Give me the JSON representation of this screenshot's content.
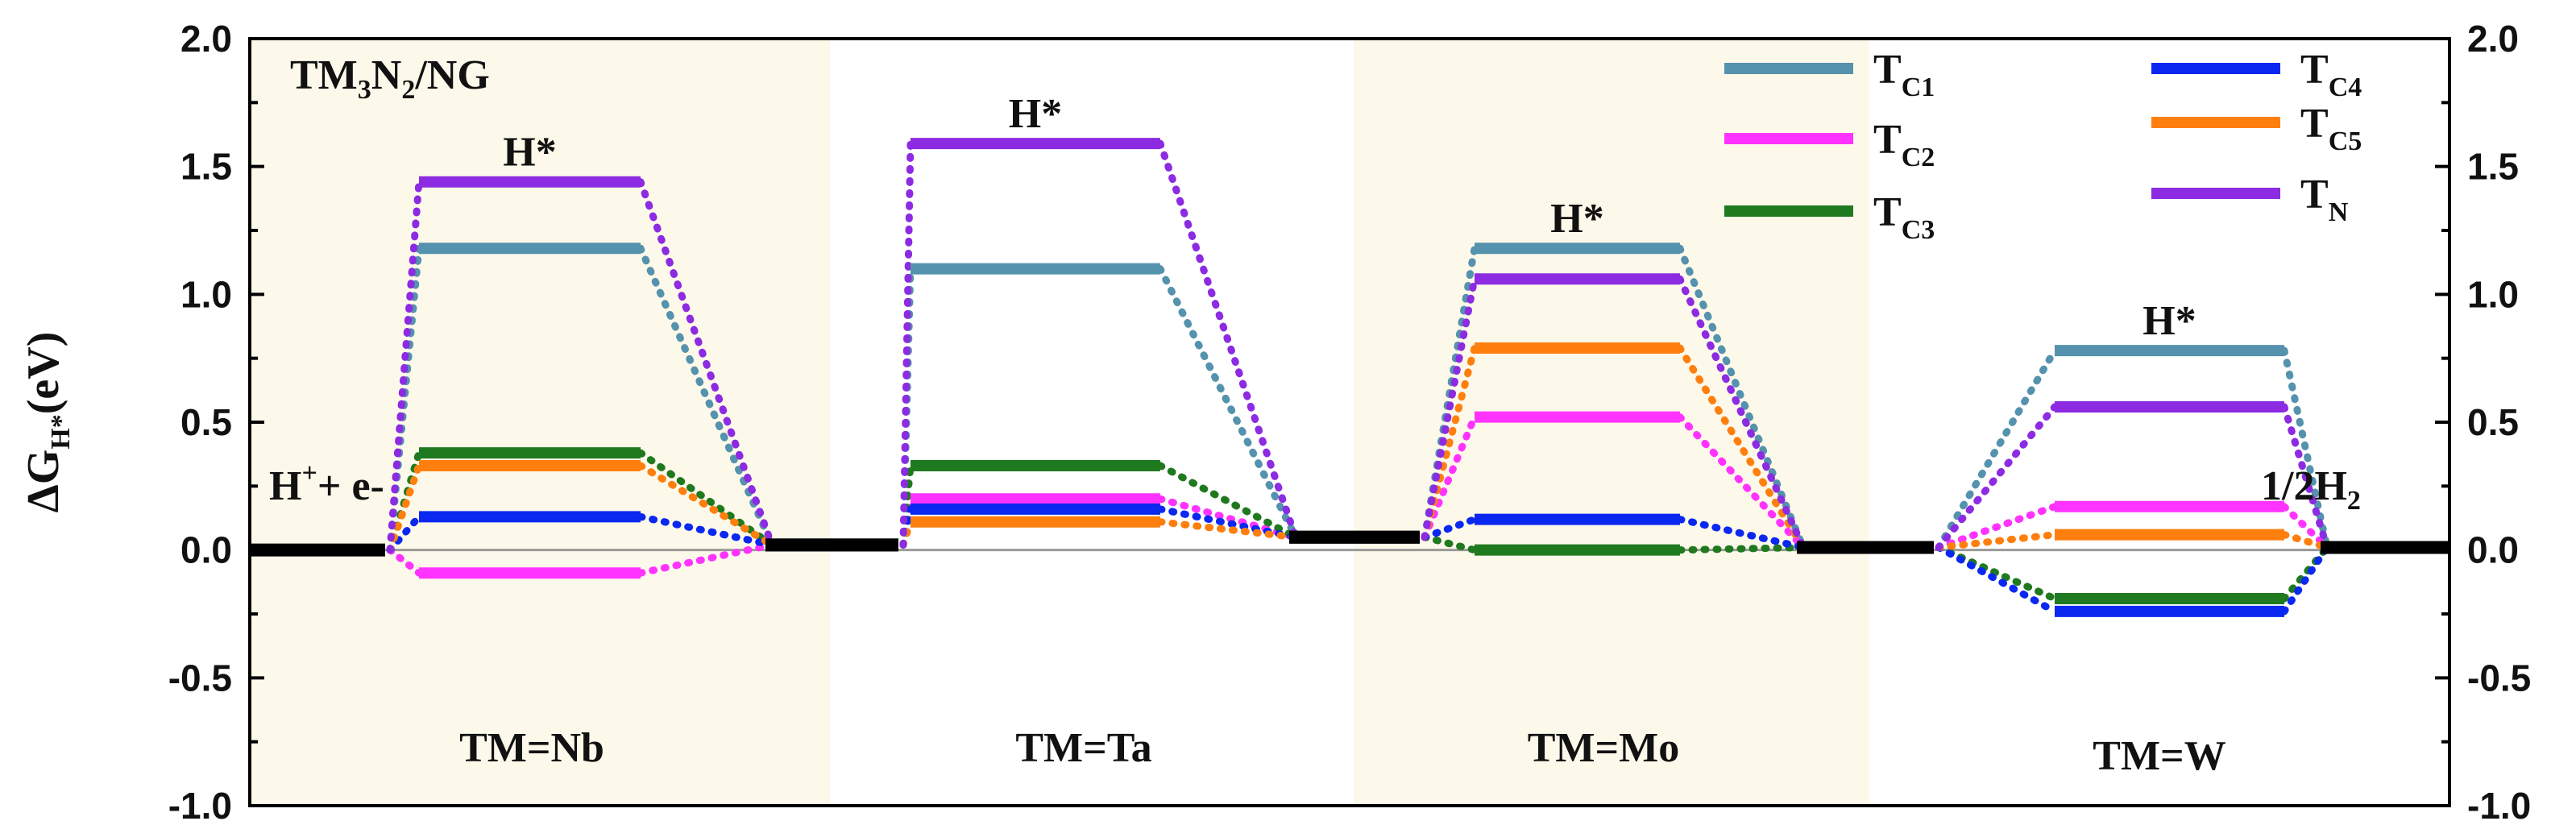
{
  "chart_data": {
    "type": "free-energy-diagram",
    "ylabel": {
      "main": "ΔG",
      "sub": "H*",
      "unit": "(eV)"
    },
    "ylim": [
      -1.0,
      2.0
    ],
    "yticks": [
      "2.0",
      "1.5",
      "1.0",
      "0.5",
      "0.0",
      "-0.5",
      "-1.0"
    ],
    "panel_title": {
      "a": "TM",
      "s1": "3",
      "b": "N",
      "s2": "2",
      "c": "/NG"
    },
    "initial_label": {
      "a": "H",
      "sup": "+",
      "b": "+ e-"
    },
    "final_label": {
      "a": "1/2H",
      "sub": "2"
    },
    "intermediate_label": "H*",
    "legend": [
      {
        "key": "TC1",
        "main": "T",
        "sub": "C1",
        "color": "#5592ad"
      },
      {
        "key": "TC2",
        "main": "T",
        "sub": "C2",
        "color": "#ff33ff"
      },
      {
        "key": "TC3",
        "main": "T",
        "sub": "C3",
        "color": "#1f7a1f"
      },
      {
        "key": "TC4",
        "main": "T",
        "sub": "C4",
        "color": "#0a28f0"
      },
      {
        "key": "TC5",
        "main": "T",
        "sub": "C5",
        "color": "#ff7f0e"
      },
      {
        "key": "TN",
        "main": "T",
        "sub": "N",
        "color": "#8c2be2"
      }
    ],
    "baseline_color": "#000000",
    "panels": [
      {
        "label": "TM=Nb",
        "shaded": true,
        "initial": 0.0,
        "final": 0.02,
        "values": {
          "TC1": 1.18,
          "TC2": -0.09,
          "TC3": 0.38,
          "TC4": 0.13,
          "TC5": 0.33,
          "TN": 1.44
        }
      },
      {
        "label": "TM=Ta",
        "shaded": false,
        "initial": 0.02,
        "final": 0.05,
        "values": {
          "TC1": 1.1,
          "TC2": 0.2,
          "TC3": 0.33,
          "TC4": 0.16,
          "TC5": 0.11,
          "TN": 1.59
        }
      },
      {
        "label": "TM=Mo",
        "shaded": true,
        "initial": 0.05,
        "final": 0.01,
        "values": {
          "TC1": 1.18,
          "TC2": 0.52,
          "TC3": 0.0,
          "TC4": 0.12,
          "TC5": 0.79,
          "TN": 1.06
        }
      },
      {
        "label": "TM=W",
        "shaded": false,
        "initial": 0.01,
        "final": 0.01,
        "values": {
          "TC1": 0.78,
          "TC2": 0.17,
          "TC3": -0.19,
          "TC4": -0.24,
          "TC5": 0.06,
          "TN": 0.56
        }
      }
    ]
  },
  "colors": {
    "shade": "#fdf9ea",
    "axis": "#000000",
    "zero_line": "#999999"
  }
}
